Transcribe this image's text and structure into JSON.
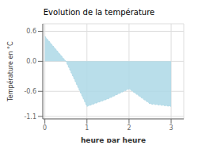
{
  "chart_data": {
    "type": "area",
    "title": "Evolution de la température",
    "xlabel": "heure par heure",
    "ylabel": "Température en °C",
    "x": [
      0,
      0.5,
      1,
      1.5,
      2,
      2.5,
      3
    ],
    "values": [
      0.5,
      0.0,
      -0.9,
      -0.75,
      -0.55,
      -0.85,
      -0.9
    ],
    "color": "#add8e6",
    "line_style": "dotted",
    "xlim": [
      -0.05,
      3.3
    ],
    "ylim": [
      -1.15,
      0.75
    ],
    "xticks": [
      0,
      1,
      2,
      3
    ],
    "yticks": [
      -1.1,
      -0.6,
      {
        "value": 0,
        "label": "0.0"
      },
      0.6
    ],
    "grid": true
  }
}
